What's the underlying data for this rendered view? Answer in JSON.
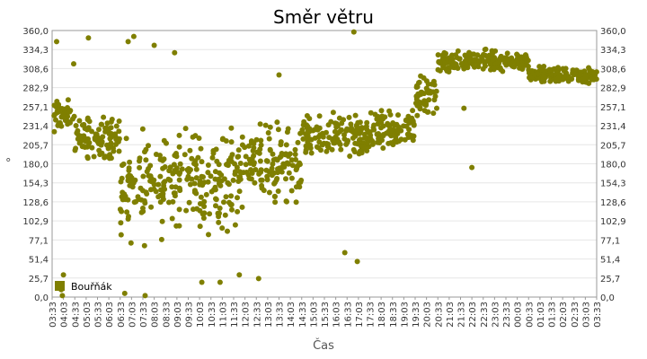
{
  "chart_data": {
    "type": "scatter",
    "title": "Směr větru",
    "xlabel": "Čas",
    "ylabel": "°",
    "ylim": [
      0,
      360
    ],
    "yticks": [
      "0,0",
      "25,7",
      "51,4",
      "77,1",
      "102,9",
      "128,6",
      "154,3",
      "180,0",
      "205,7",
      "231,4",
      "257,1",
      "282,9",
      "308,6",
      "334,3",
      "360,0"
    ],
    "xticks": [
      "03:33",
      "04:03",
      "04:33",
      "05:03",
      "05:33",
      "06:03",
      "06:33",
      "07:03",
      "07:33",
      "08:03",
      "08:33",
      "09:03",
      "09:33",
      "10:03",
      "10:33",
      "11:03",
      "11:33",
      "12:03",
      "12:33",
      "13:03",
      "13:33",
      "14:03",
      "14:33",
      "15:03",
      "15:33",
      "16:03",
      "16:33",
      "17:03",
      "17:33",
      "18:03",
      "18:33",
      "19:03",
      "19:33",
      "20:03",
      "20:33",
      "21:03",
      "21:33",
      "22:03",
      "22:33",
      "23:03",
      "23:33",
      "00:03",
      "00:33",
      "01:03",
      "01:33",
      "02:03",
      "02:33",
      "03:03",
      "03:33"
    ],
    "grid": true,
    "legend_position": "bottom-left",
    "series": [
      {
        "name": "Bouřňák",
        "color": "#7f7f00",
        "segments": [
          {
            "x_from": 0,
            "x_to": 2,
            "mean": 245,
            "spread": 18
          },
          {
            "x_from": 2,
            "x_to": 6,
            "mean": 215,
            "spread": 25
          },
          {
            "x_from": 6,
            "x_to": 10,
            "mean": 150,
            "spread": 60
          },
          {
            "x_from": 10,
            "x_to": 17,
            "mean": 160,
            "spread": 55
          },
          {
            "x_from": 17,
            "x_to": 22,
            "mean": 180,
            "spread": 45
          },
          {
            "x_from": 22,
            "x_to": 28,
            "mean": 215,
            "spread": 25
          },
          {
            "x_from": 28,
            "x_to": 32,
            "mean": 225,
            "spread": 25
          },
          {
            "x_from": 32,
            "x_to": 34,
            "mean": 270,
            "spread": 25
          },
          {
            "x_from": 34,
            "x_to": 42,
            "mean": 318,
            "spread": 12
          },
          {
            "x_from": 42,
            "x_to": 48,
            "mean": 300,
            "spread": 10
          }
        ],
        "outliers": [
          {
            "x": 0.4,
            "y": 345
          },
          {
            "x": 0.8,
            "y": 10
          },
          {
            "x": 0.9,
            "y": 2
          },
          {
            "x": 1.0,
            "y": 30
          },
          {
            "x": 1.9,
            "y": 315
          },
          {
            "x": 3.2,
            "y": 350
          },
          {
            "x": 6.7,
            "y": 345
          },
          {
            "x": 7.2,
            "y": 352
          },
          {
            "x": 9.0,
            "y": 340
          },
          {
            "x": 10.8,
            "y": 330
          },
          {
            "x": 14.8,
            "y": 20
          },
          {
            "x": 16.5,
            "y": 30
          },
          {
            "x": 18.2,
            "y": 25
          },
          {
            "x": 20.0,
            "y": 300
          },
          {
            "x": 25.8,
            "y": 60
          },
          {
            "x": 26.6,
            "y": 358
          },
          {
            "x": 26.9,
            "y": 48
          },
          {
            "x": 8.2,
            "y": 2
          },
          {
            "x": 6.4,
            "y": 5
          },
          {
            "x": 13.2,
            "y": 20
          },
          {
            "x": 37.0,
            "y": 175
          },
          {
            "x": 36.3,
            "y": 255
          }
        ]
      }
    ]
  }
}
